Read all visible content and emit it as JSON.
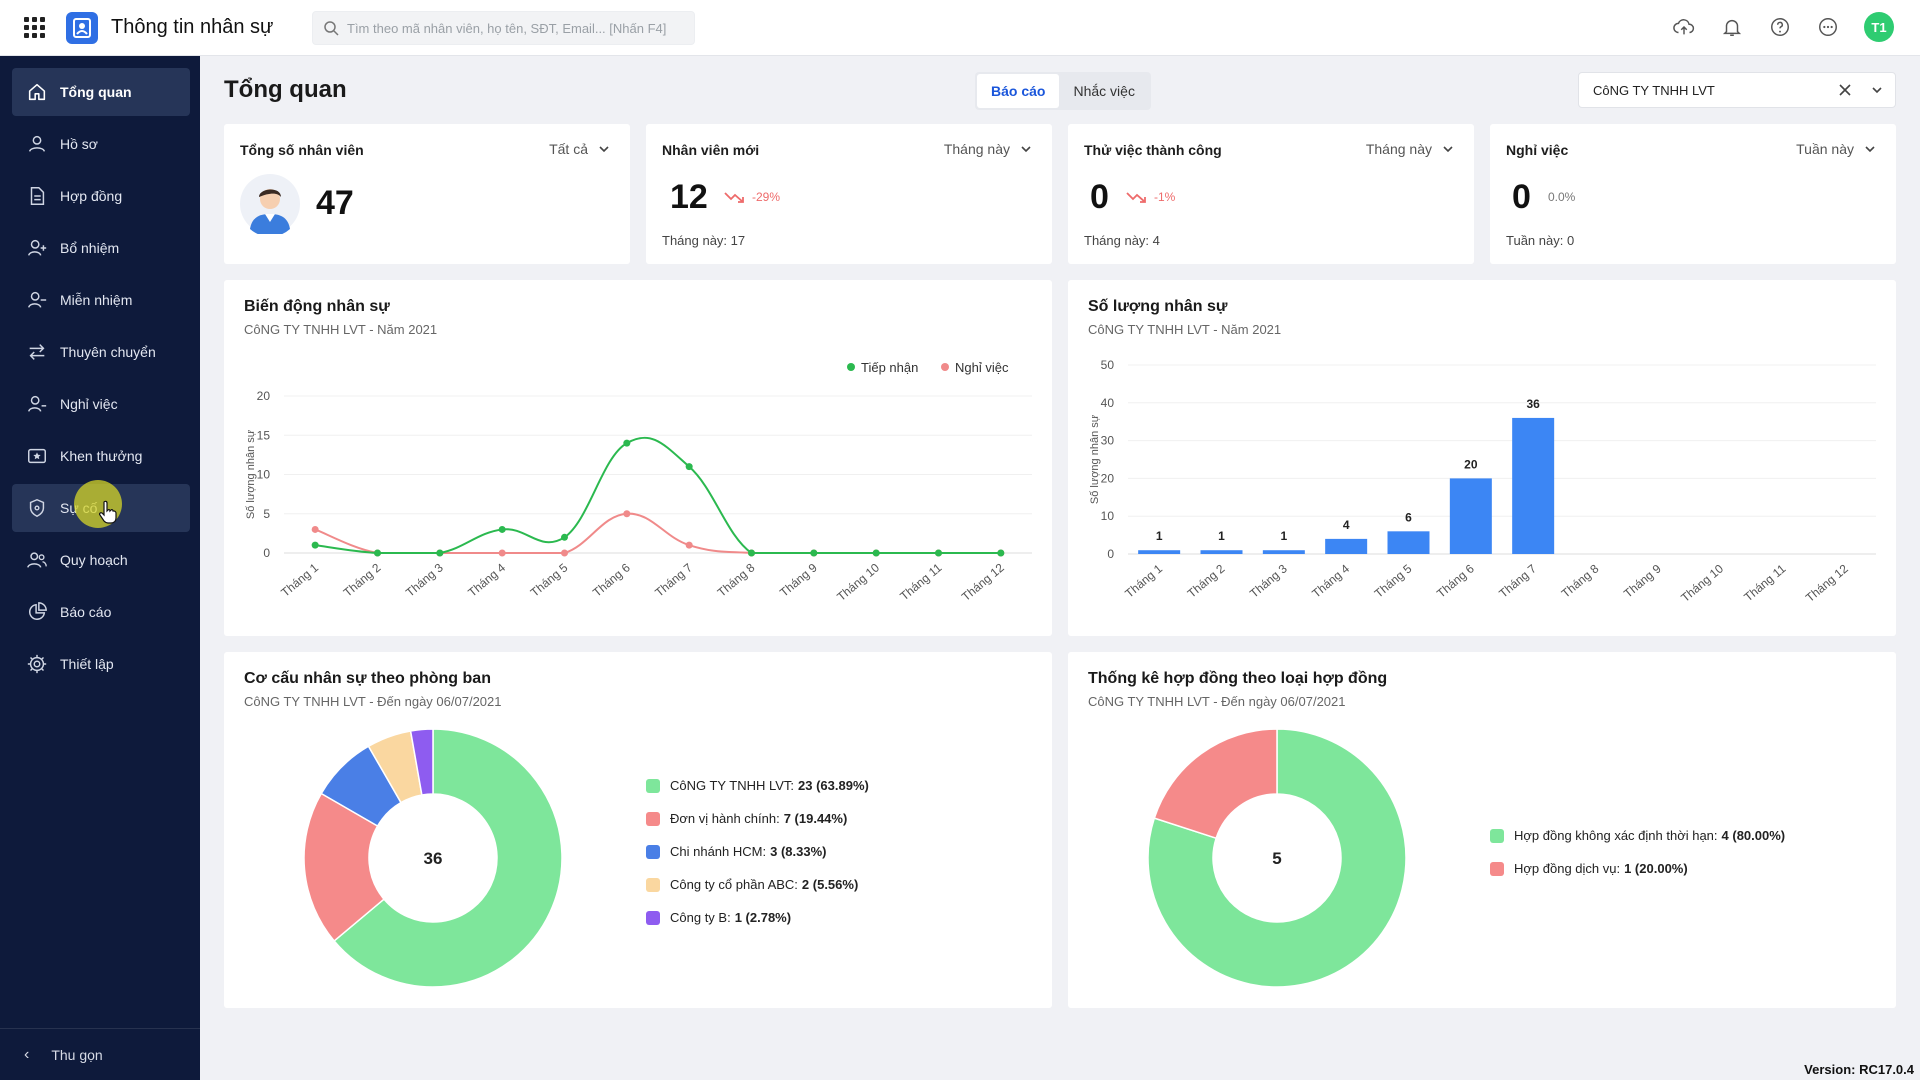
{
  "app": {
    "title": "Thông tin nhân sự"
  },
  "search": {
    "placeholder": "Tìm theo mã nhân viên, họ tên, SĐT, Email... [Nhấn F4]"
  },
  "user": {
    "initials": "T1"
  },
  "sidebar": {
    "items": [
      {
        "label": "Tổng quan",
        "icon": "home-icon",
        "state": "active"
      },
      {
        "label": "Hồ sơ",
        "icon": "user-icon"
      },
      {
        "label": "Hợp đồng",
        "icon": "document-icon"
      },
      {
        "label": "Bổ nhiệm",
        "icon": "user-add-icon"
      },
      {
        "label": "Miễn nhiệm",
        "icon": "user-remove-icon"
      },
      {
        "label": "Thuyên chuyển",
        "icon": "transfer-icon"
      },
      {
        "label": "Nghỉ việc",
        "icon": "user-leave-icon"
      },
      {
        "label": "Khen thưởng",
        "icon": "award-icon"
      },
      {
        "label": "Sự cố",
        "icon": "shield-icon",
        "state": "hover"
      },
      {
        "label": "Quy hoạch",
        "icon": "users-icon"
      },
      {
        "label": "Báo cáo",
        "icon": "pie-chart-icon"
      },
      {
        "label": "Thiết lập",
        "icon": "gear-icon"
      }
    ],
    "collapse_label": "Thu gọn"
  },
  "header": {
    "title": "Tổng quan",
    "tabs": [
      {
        "label": "Báo cáo",
        "selected": true
      },
      {
        "label": "Nhắc việc",
        "selected": false
      }
    ],
    "company": "CôNG TY TNHH LVT"
  },
  "kpis": [
    {
      "title": "Tổng số nhân viên",
      "filter": "Tất cả",
      "value": "47"
    },
    {
      "title": "Nhân viên mới",
      "filter": "Tháng này",
      "value": "12",
      "change": "-29%",
      "sub": "Tháng này: 17"
    },
    {
      "title": "Thử việc thành công",
      "filter": "Tháng này",
      "value": "0",
      "change": "-1%",
      "sub": "Tháng này: 4"
    },
    {
      "title": "Nghỉ việc",
      "filter": "Tuần này",
      "value": "0",
      "change": "0.0%",
      "sub": "Tuần này: 0"
    }
  ],
  "colors": {
    "accent": "#1a56db",
    "green": "#2bb94f",
    "red": "#f08a8a",
    "bar": "#3c86f4",
    "sidebar": "#0e1a3b"
  },
  "chart_data": [
    {
      "type": "line",
      "title": "Biến động nhân sự",
      "subtitle": "CôNG TY TNHH LVT - Năm 2021",
      "ylabel": "Số lượng nhân sự",
      "ylim": [
        0,
        20
      ],
      "yticks": [
        0,
        5,
        10,
        15,
        20
      ],
      "categories": [
        "Tháng 1",
        "Tháng 2",
        "Tháng 3",
        "Tháng 4",
        "Tháng 5",
        "Tháng 6",
        "Tháng 7",
        "Tháng 8",
        "Tháng 9",
        "Tháng 10",
        "Tháng 11",
        "Tháng 12"
      ],
      "legend": "top-right",
      "series": [
        {
          "name": "Tiếp nhận",
          "color": "#2bb94f",
          "values": [
            1,
            0,
            0,
            3,
            2,
            14,
            11,
            0,
            0,
            0,
            0,
            0
          ]
        },
        {
          "name": "Nghỉ việc",
          "color": "#f08a8a",
          "values": [
            3,
            0,
            0,
            0,
            0,
            5,
            1,
            0,
            0,
            0,
            0,
            0
          ]
        }
      ]
    },
    {
      "type": "bar",
      "title": "Số lượng nhân sự",
      "subtitle": "CôNG TY TNHH LVT - Năm 2021",
      "ylabel": "Số lượng nhân sự",
      "ylim": [
        0,
        50
      ],
      "yticks": [
        0,
        10,
        20,
        30,
        40,
        50
      ],
      "categories": [
        "Tháng 1",
        "Tháng 2",
        "Tháng 3",
        "Tháng 4",
        "Tháng 5",
        "Tháng 6",
        "Tháng 7",
        "Tháng 8",
        "Tháng 9",
        "Tháng 10",
        "Tháng 11",
        "Tháng 12"
      ],
      "values": [
        1,
        1,
        1,
        4,
        6,
        20,
        36,
        null,
        null,
        null,
        null,
        null
      ],
      "color": "#3c86f4"
    },
    {
      "type": "pie",
      "title": "Cơ cấu nhân sự theo phòng ban",
      "subtitle": "CôNG TY TNHH LVT - Đến ngày 06/07/2021",
      "center_label": "36",
      "slices": [
        {
          "name": "CôNG TY TNHH LVT:",
          "value": 23,
          "label": "23 (63.89%)",
          "color": "#7ee69b"
        },
        {
          "name": "Đơn vị hành chính:",
          "value": 7,
          "label": "7 (19.44%)",
          "color": "#f58a8a"
        },
        {
          "name": "Chi nhánh HCM:",
          "value": 3,
          "label": "3 (8.33%)",
          "color": "#4a7fe6"
        },
        {
          "name": "Công ty cổ phần ABC:",
          "value": 2,
          "label": "2 (5.56%)",
          "color": "#fad7a0"
        },
        {
          "name": "Công ty B:",
          "value": 1,
          "label": "1 (2.78%)",
          "color": "#8e5cf0"
        }
      ]
    },
    {
      "type": "pie",
      "title": "Thống kê hợp đồng theo loại hợp đồng",
      "subtitle": "CôNG TY TNHH LVT - Đến ngày 06/07/2021",
      "center_label": "5",
      "slices": [
        {
          "name": "Hợp đồng không xác định thời hạn:",
          "value": 4,
          "label": "4 (80.00%)",
          "color": "#7ee69b"
        },
        {
          "name": "Hợp đồng dịch vụ:",
          "value": 1,
          "label": "1 (20.00%)",
          "color": "#f58a8a"
        }
      ]
    }
  ],
  "version": "Version: RC17.0.4"
}
